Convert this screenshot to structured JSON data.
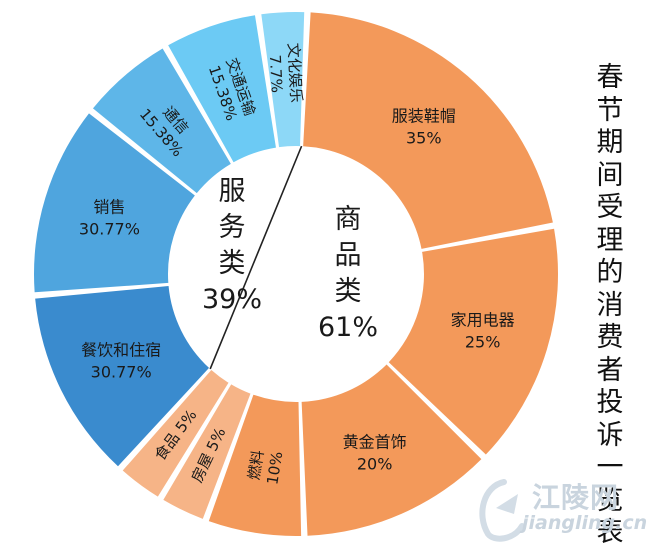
{
  "side_title": "春节期间受理的消费者投诉一览表",
  "watermark": {
    "name": "江陵网",
    "url": "jiangling.cn"
  },
  "colors": {
    "goods": "#f3995a",
    "food_house": "#f6b487",
    "services": [
      "#3a8bce",
      "#4fa5de",
      "#5eb6e8",
      "#6ccaf4",
      "#8dd8f7"
    ]
  },
  "chart_data": {
    "type": "pie",
    "style": "donut",
    "groups": [
      {
        "name": "商品类",
        "percent_label": "61%",
        "value": 61
      },
      {
        "name": "服务类",
        "percent_label": "39%",
        "value": 39
      }
    ],
    "slices": [
      {
        "group": "商品类",
        "label": "服装鞋帽",
        "value_label": "35%",
        "value": 35,
        "color": "#f3995a"
      },
      {
        "group": "商品类",
        "label": "家用电器",
        "value_label": "25%",
        "value": 25,
        "color": "#f3995a"
      },
      {
        "group": "商品类",
        "label": "黄金首饰",
        "value_label": "20%",
        "value": 20,
        "color": "#f3995a"
      },
      {
        "group": "商品类",
        "label": "燃料",
        "value_label": "10%",
        "value": 10,
        "color": "#f3995a"
      },
      {
        "group": "商品类",
        "label": "房屋",
        "value_label": "5%",
        "value": 5,
        "color": "#f6b487"
      },
      {
        "group": "商品类",
        "label": "食品",
        "value_label": "5%",
        "value": 5,
        "color": "#f6b487"
      },
      {
        "group": "服务类",
        "label": "餐饮和住宿",
        "value_label": "30.77%",
        "value": 30.77,
        "color": "#3a8bce"
      },
      {
        "group": "服务类",
        "label": "销售",
        "value_label": "30.77%",
        "value": 30.77,
        "color": "#4fa5de"
      },
      {
        "group": "服务类",
        "label": "通信",
        "value_label": "15.38%",
        "value": 15.38,
        "color": "#5eb6e8"
      },
      {
        "group": "服务类",
        "label": "交通运输",
        "value_label": "15.38%",
        "value": 15.38,
        "color": "#6ccaf4"
      },
      {
        "group": "服务类",
        "label": "文化娱乐",
        "value_label": "7.7%",
        "value": 7.7,
        "color": "#8dd8f7"
      }
    ]
  }
}
